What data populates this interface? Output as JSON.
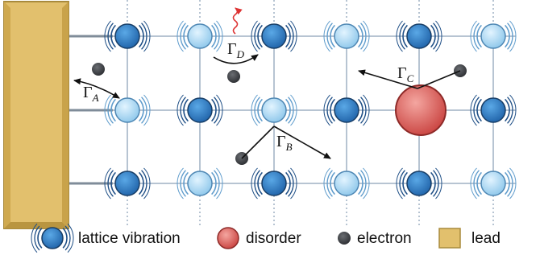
{
  "rates": [
    {
      "symbol": "Γ",
      "subscript": "A"
    },
    {
      "symbol": "Γ",
      "subscript": "B"
    },
    {
      "symbol": "Γ",
      "subscript": "C"
    },
    {
      "symbol": "Γ",
      "subscript": "D"
    }
  ],
  "legend": [
    "lattice vibration",
    "disorder",
    "electron",
    "lead"
  ]
}
